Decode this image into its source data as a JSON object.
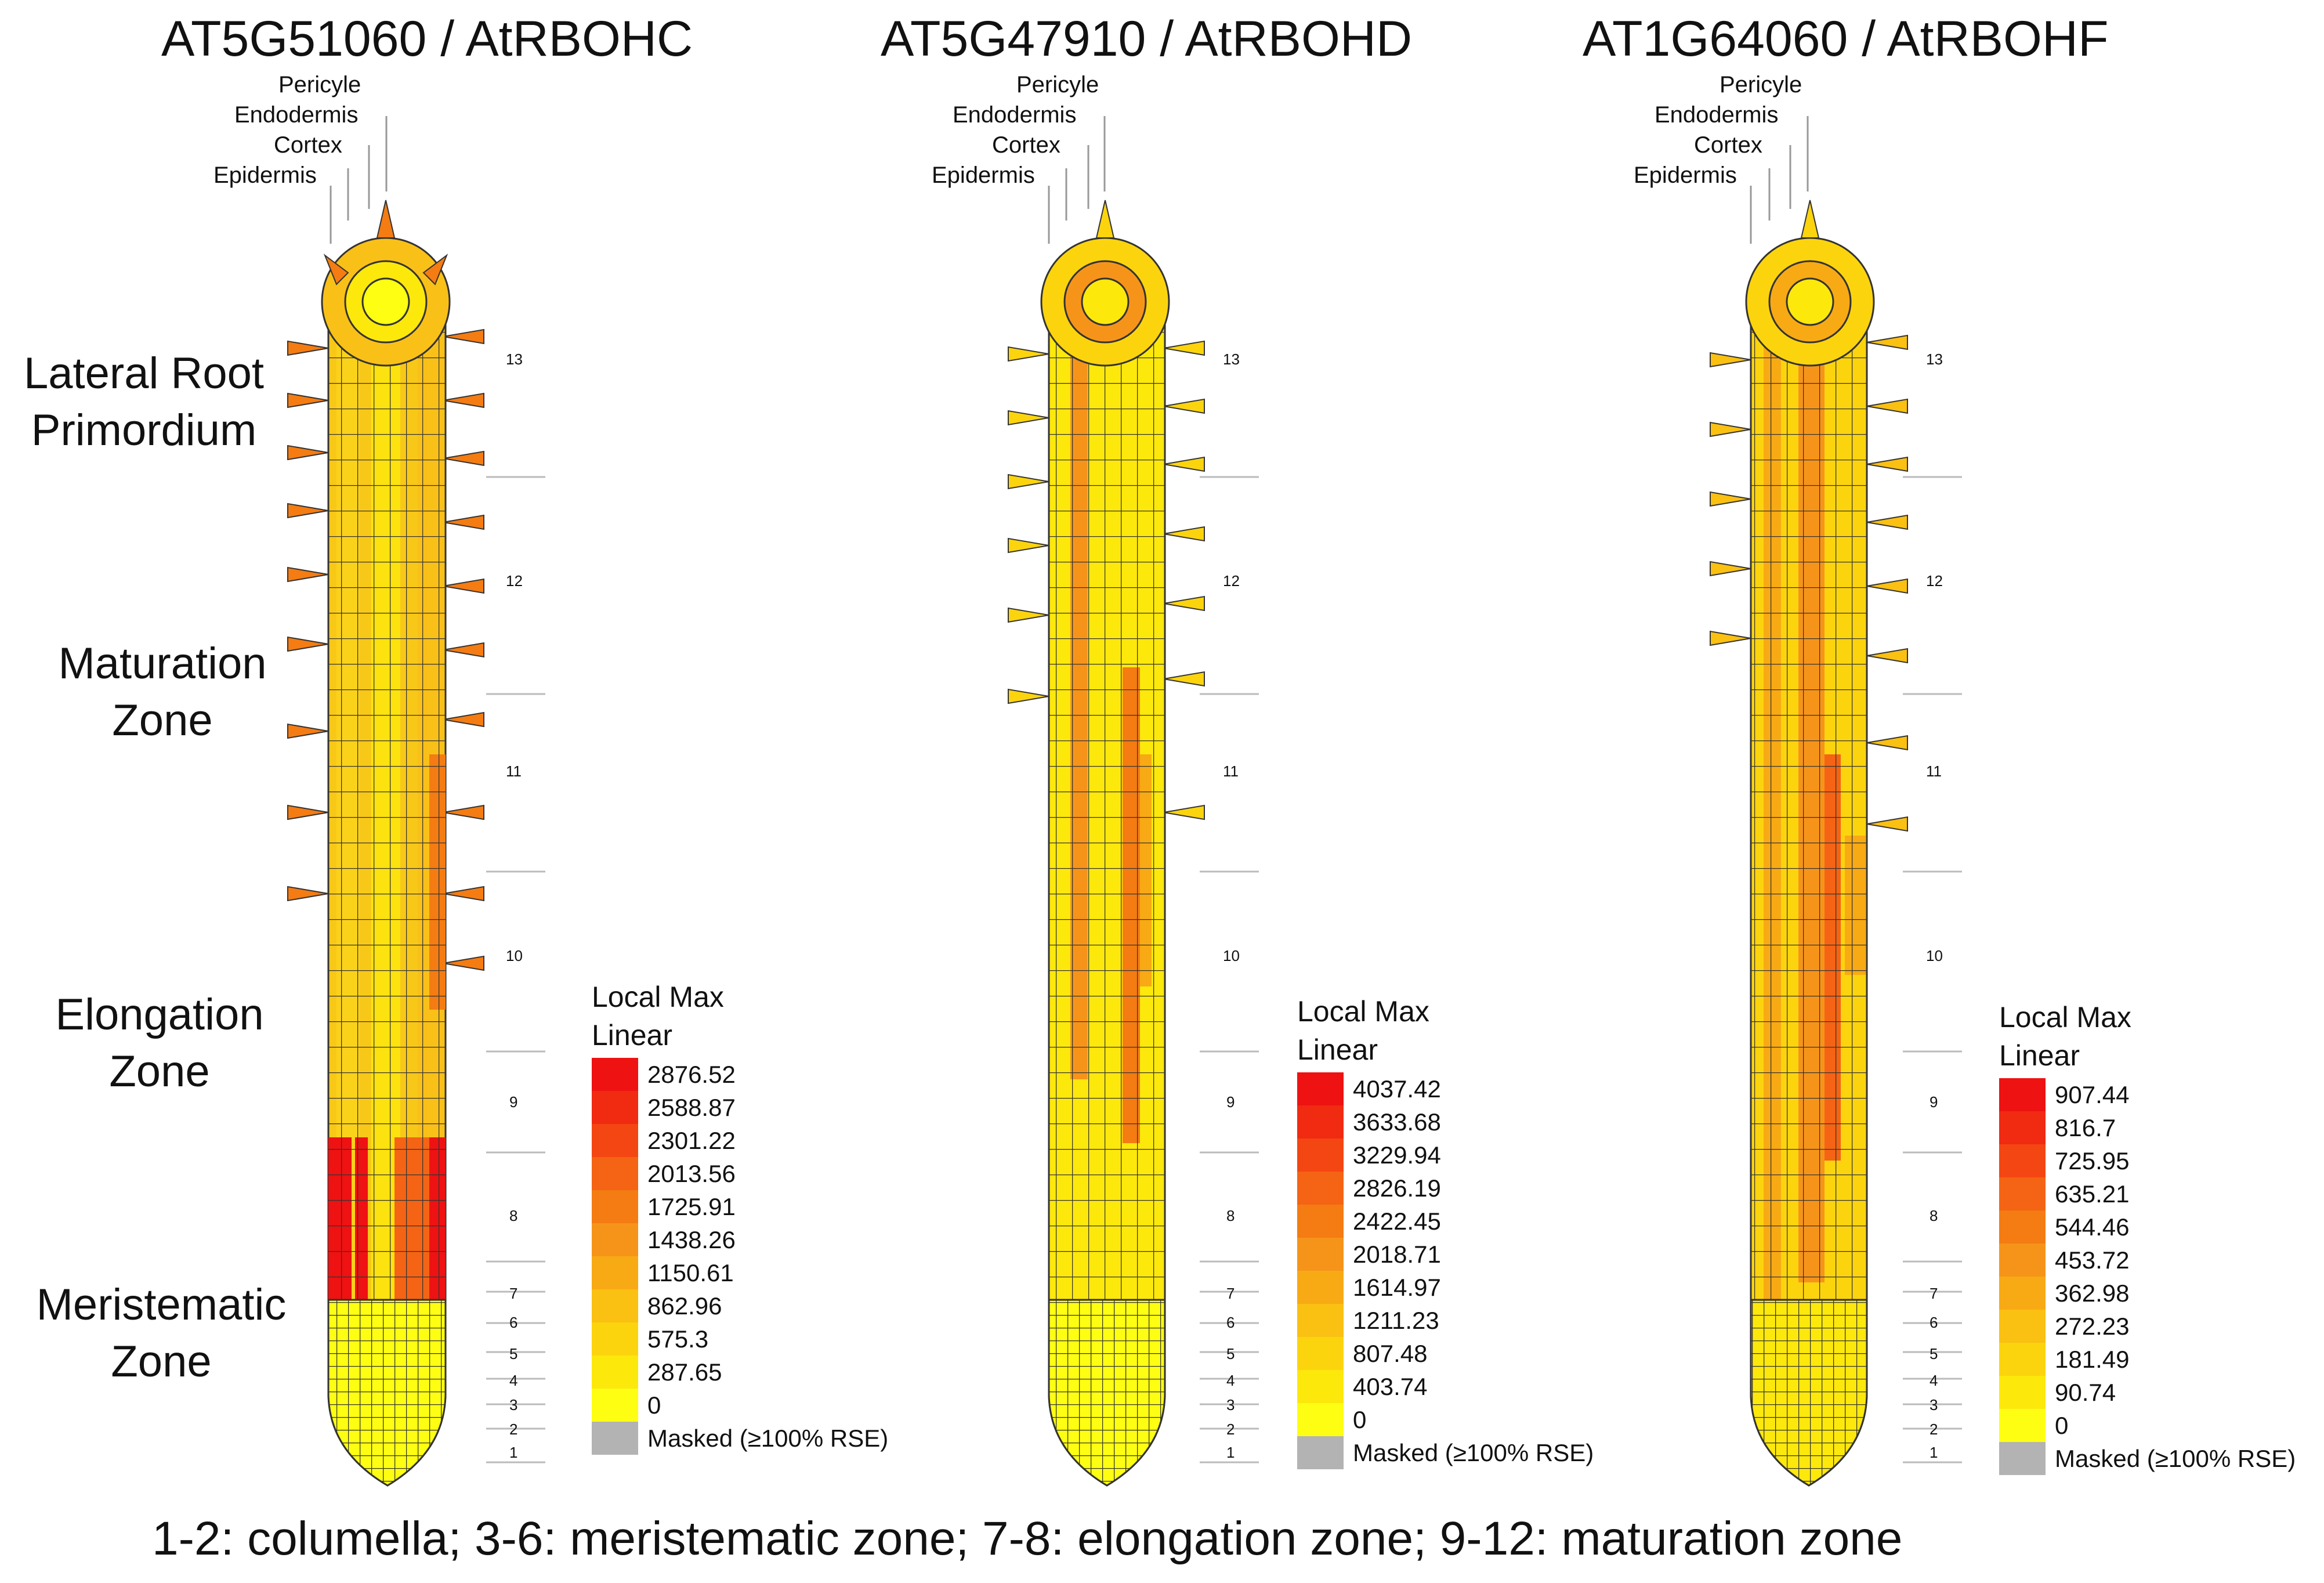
{
  "figure": {
    "panels": [
      {
        "title": "AT5G51060 / AtRBOHC",
        "legend": {
          "heading1": "Local Max",
          "heading2": "Linear",
          "values": [
            "2876.52",
            "2588.87",
            "2301.22",
            "2013.56",
            "1725.91",
            "1438.26",
            "1150.61",
            "862.96",
            "575.3",
            "287.65",
            "0"
          ],
          "masked": "Masked (≥100% RSE)"
        }
      },
      {
        "title": "AT5G47910 / AtRBOHD",
        "legend": {
          "heading1": "Local Max",
          "heading2": "Linear",
          "values": [
            "4037.42",
            "3633.68",
            "3229.94",
            "2826.19",
            "2422.45",
            "2018.71",
            "1614.97",
            "1211.23",
            "807.48",
            "403.74",
            "0"
          ],
          "masked": "Masked (≥100% RSE)"
        }
      },
      {
        "title": "AT1G64060 / AtRBOHF",
        "legend": {
          "heading1": "Local Max",
          "heading2": "Linear",
          "values": [
            "907.44",
            "816.7",
            "725.95",
            "635.21",
            "544.46",
            "453.72",
            "362.98",
            "272.23",
            "181.49",
            "90.74",
            "0"
          ],
          "masked": "Masked (≥100% RSE)"
        }
      }
    ],
    "tissues": [
      "Pericyle",
      "Endodermis",
      "Cortex",
      "Epidermis"
    ],
    "zones": [
      {
        "line1": "Lateral Root",
        "line2": "Primordium"
      },
      {
        "line1": "Maturation",
        "line2": "Zone"
      },
      {
        "line1": "Elongation",
        "line2": "Zone"
      },
      {
        "line1": "Meristematic",
        "line2": "Zone"
      }
    ],
    "segment_numbers": [
      "13",
      "12",
      "11",
      "10",
      "9",
      "8",
      "7",
      "6",
      "5",
      "4",
      "3",
      "2",
      "1"
    ],
    "footer": "1-2: columella; 3-6: meristematic zone; 7-8: elongation zone; 9-12: maturation zone",
    "color_scale": [
      "#ee1212",
      "#f12a12",
      "#f44612",
      "#f46414",
      "#f47c12",
      "#f6941a",
      "#f8aa14",
      "#fac012",
      "#fcd40e",
      "#fde80c",
      "#fefe12"
    ],
    "masked_color": "#b3b3b3"
  }
}
